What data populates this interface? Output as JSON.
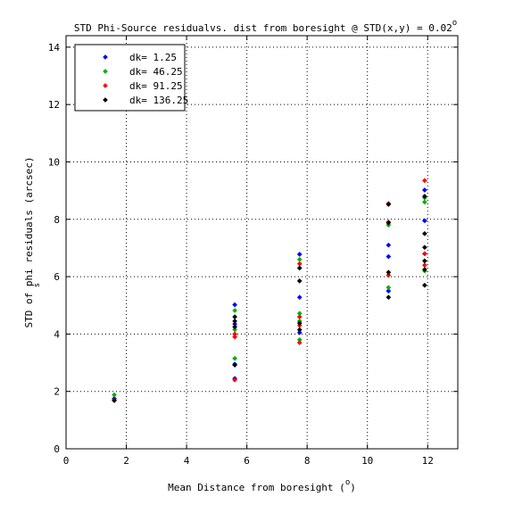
{
  "chart_data": {
    "type": "scatter",
    "title": "STD Phi-Source residualvs. dist from boresight @ STD(x,y) = 0.02",
    "title_superscript": "o",
    "xlabel": "Mean Distance from boresight (",
    "xlabel_superscript": "o",
    "xlabel_suffix": ")",
    "ylabel": "STD of phi   residuals (arcsec)",
    "ylabel_subscript": "s",
    "xlim": [
      0,
      13
    ],
    "ylim": [
      0,
      14.4
    ],
    "xticks": [
      0,
      2,
      4,
      6,
      8,
      10,
      12
    ],
    "yticks": [
      0,
      2,
      4,
      6,
      8,
      10,
      12,
      14
    ],
    "grid": true,
    "grid_style": "dotted",
    "legend_position": "top-left",
    "marker": "diamond",
    "series": [
      {
        "name": "dk= 1.25",
        "color": "#0000ff",
        "x": [
          1.6,
          5.6,
          5.6,
          5.6,
          5.6,
          7.75,
          7.75,
          7.75,
          10.7,
          10.7,
          10.7,
          11.9,
          11.9,
          11.9
        ],
        "y": [
          1.75,
          5.02,
          4.35,
          2.45,
          2.95,
          6.78,
          5.28,
          4.05,
          7.1,
          6.7,
          5.5,
          9.02,
          7.95,
          6.8
        ]
      },
      {
        "name": "dk= 46.25",
        "color": "#00b000",
        "x": [
          1.6,
          5.6,
          5.6,
          5.6,
          7.75,
          7.75,
          7.75,
          7.75,
          10.7,
          10.7,
          11.9,
          11.9,
          11.9
        ],
        "y": [
          1.88,
          4.82,
          3.15,
          4.15,
          6.6,
          4.72,
          3.8,
          4.45,
          7.8,
          5.62,
          8.6,
          8.75,
          6.2
        ]
      },
      {
        "name": "dk= 91.25",
        "color": "#ff0000",
        "x": [
          1.6,
          5.6,
          5.6,
          5.6,
          7.75,
          7.75,
          7.75,
          7.75,
          10.7,
          10.7,
          10.7,
          11.9,
          11.9,
          11.9
        ],
        "y": [
          1.7,
          4.0,
          2.4,
          3.9,
          6.45,
          4.6,
          3.7,
          4.3,
          8.55,
          7.9,
          6.05,
          9.35,
          6.8,
          6.4
        ]
      },
      {
        "name": "dk= 136.25",
        "color": "#000000",
        "x": [
          1.6,
          5.6,
          5.6,
          5.6,
          5.6,
          7.75,
          7.75,
          7.75,
          7.75,
          10.7,
          10.7,
          10.7,
          10.7,
          11.9,
          11.9,
          11.9,
          11.9,
          11.9,
          11.9
        ],
        "y": [
          1.68,
          4.6,
          4.45,
          4.25,
          2.92,
          6.3,
          5.85,
          4.15,
          4.38,
          8.52,
          7.88,
          6.15,
          5.28,
          8.8,
          7.5,
          7.02,
          6.55,
          6.25,
          5.7
        ]
      }
    ]
  }
}
